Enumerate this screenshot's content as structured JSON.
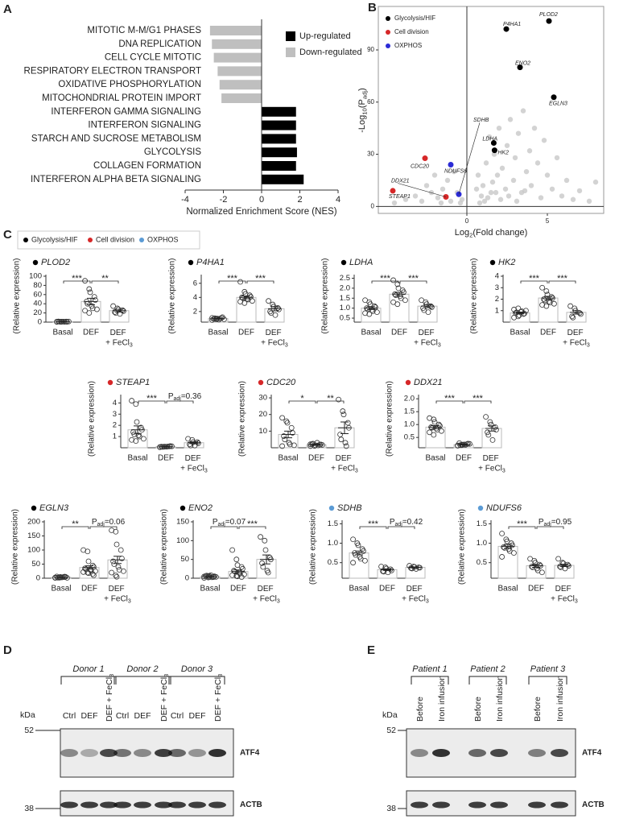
{
  "panel_labels": [
    "A",
    "B",
    "C",
    "D",
    "E"
  ],
  "chart_data": [
    {
      "type": "hbar",
      "xlabel": "Normalized Enrichment Score (NES)",
      "categories": [
        "MITOTIC M-M/G1 PHASES",
        "DNA REPLICATION",
        "CELL CYCLE MITOTIC",
        "RESPIRATORY ELECTRON TRANSPORT",
        "OXIDATIVE PHOSPHORYLATION",
        "MITOCHONDRIAL PROTEIN IMPORT",
        "INTERFERON GAMMA SIGNALING",
        "INTERFERON SIGNALING",
        "STARCH AND SUCROSE METABOLISM",
        "GLYCOLYSIS",
        "COLLAGEN FORMATION",
        "INTERFERON ALPHA BETA SIGNALING"
      ],
      "label_colors": [
        "#d62728",
        "#222222",
        "#222222",
        "#d62728",
        "#d62728",
        "#222222",
        "#d62728",
        "#222222",
        "#222222",
        "#d62728",
        "#222222",
        "#222222"
      ],
      "series": [
        {
          "name": "Up-regulated",
          "color": "#000000",
          "values": [
            null,
            null,
            null,
            null,
            null,
            null,
            1.8,
            1.8,
            1.8,
            1.85,
            1.8,
            2.2
          ]
        },
        {
          "name": "Down-regulated",
          "color": "#bfbfbf",
          "values": [
            -2.7,
            -2.6,
            -2.5,
            -2.3,
            -2.2,
            -2.1,
            null,
            null,
            null,
            null,
            null,
            null
          ]
        }
      ],
      "xlim": [
        -4,
        4
      ],
      "xticks": [
        -4,
        -2,
        0,
        2,
        4
      ]
    },
    {
      "type": "scatter",
      "xlabel": [
        "Log",
        "2",
        "(Fold change)"
      ],
      "ylabel": [
        "-Log",
        "10",
        "(P",
        "adj",
        ")"
      ],
      "xlim": [
        -5.5,
        8.5
      ],
      "xticks": [
        0,
        5
      ],
      "ylim": [
        -4,
        115
      ],
      "yticks": [
        0,
        30,
        60,
        90
      ],
      "series": [
        {
          "color": "#c8c8c8",
          "x": [
            -4.5,
            -3.8,
            -3.2,
            -2.8,
            -2.5,
            -2.2,
            -2.0,
            -1.8,
            -1.5,
            -1.2,
            -1.0,
            -0.8,
            -0.6,
            -0.4,
            1.0,
            1.2,
            1.4,
            1.5,
            1.7,
            1.9,
            2.0,
            2.2,
            2.4,
            2.5,
            2.7,
            2.9,
            3.0,
            3.2,
            3.4,
            3.5,
            3.7,
            3.9,
            4.0,
            4.2,
            4.4,
            4.6,
            4.8,
            5.0,
            5.3,
            5.6,
            5.9,
            6.2,
            6.6,
            7.0,
            7.6,
            8.0,
            1.1,
            1.3,
            0.9,
            2.1,
            0.6,
            0.8,
            -0.3,
            -1.6,
            1.6,
            2.6,
            3.1,
            3.6,
            0.7,
            1.8
          ],
          "values": [
            2,
            4,
            6,
            3,
            12,
            8,
            18,
            5,
            10,
            15,
            3,
            20,
            8,
            2,
            12,
            25,
            40,
            8,
            30,
            18,
            45,
            22,
            10,
            35,
            50,
            15,
            28,
            42,
            8,
            55,
            20,
            32,
            12,
            45,
            25,
            5,
            38,
            18,
            10,
            28,
            6,
            15,
            4,
            9,
            3,
            14,
            3,
            5,
            6,
            4,
            10,
            2,
            4,
            2,
            14,
            6,
            3,
            9,
            18,
            8
          ]
        },
        {
          "name": "Glycolysis/HIF",
          "color": "#000000",
          "x": [
            2.45,
            5.1,
            3.3,
            5.4,
            1.67,
            1.72
          ],
          "values": [
            102,
            106.6,
            80,
            62.8,
            36.5,
            32.3
          ],
          "labels": [
            "P4HA1",
            "PLOD2",
            "ENO2",
            "EGLN3",
            "LDHA",
            "HK2"
          ]
        },
        {
          "name": "Cell division",
          "color": "#d62728",
          "x": [
            -1.3,
            -2.6,
            -4.6
          ],
          "values": [
            5.5,
            27.7,
            9
          ],
          "labels": [
            "DDX21",
            "CDC20",
            "STEAP1"
          ]
        },
        {
          "name": "OXPHOS",
          "color": "#2b2bd6",
          "x": [
            -0.5,
            -1.0
          ],
          "values": [
            7,
            24
          ],
          "labels": [
            "SDHB",
            "NDUFS6"
          ]
        }
      ]
    },
    {
      "type": "dot",
      "title": "PLOD2",
      "marker_color": "#000000",
      "categories": [
        "Basal",
        "DEF",
        "DEF + FeCl3"
      ],
      "ylabel": "(Relative expression)",
      "ylim": [
        0,
        100
      ],
      "yticks": [
        0,
        20,
        40,
        60,
        80,
        100
      ],
      "values": [
        1,
        45,
        25
      ],
      "errors": [
        0.3,
        7,
        3
      ],
      "points": [
        [
          0.5,
          0.8,
          1,
          1.2,
          0.6,
          1.5,
          0.9,
          1.1,
          0.7,
          1.3,
          1,
          0.8
        ],
        [
          90,
          72,
          65,
          55,
          48,
          45,
          40,
          35,
          30,
          28,
          25,
          20
        ],
        [
          35,
          30,
          28,
          26,
          24,
          22,
          20,
          18
        ]
      ],
      "significance": [
        "***",
        "**"
      ]
    },
    {
      "type": "dot",
      "title": "P4HA1",
      "marker_color": "#000000",
      "categories": [
        "Basal",
        "DEF",
        "DEF + FeCl3"
      ],
      "ylabel": "(Relative expression)",
      "ylim": [
        0.5,
        7
      ],
      "yticks": [
        2,
        4,
        6
      ],
      "values": [
        1,
        4,
        2.4
      ],
      "errors": [
        0.05,
        0.2,
        0.3
      ],
      "points": [
        [
          0.8,
          0.9,
          1,
          1.1,
          1.2,
          0.95,
          1.05,
          0.85,
          1,
          0.9,
          1.1,
          1
        ],
        [
          6.2,
          4.8,
          4.5,
          4.3,
          4.1,
          4,
          3.9,
          3.8,
          3.7,
          3.5,
          3.4,
          3.2
        ],
        [
          3.5,
          3,
          2.7,
          2.5,
          2.3,
          2,
          1.8,
          1.5
        ]
      ],
      "significance": [
        "***",
        "***"
      ]
    },
    {
      "type": "dot",
      "title": "LDHA",
      "marker_color": "#000000",
      "categories": [
        "Basal",
        "DEF",
        "DEF + FeCl3"
      ],
      "ylabel": "(Relative expression)",
      "ylim": [
        0.3,
        2.6
      ],
      "yticks": [
        0.5,
        {
          "value": 1,
          "label": "1.0"
        },
        1.5,
        {
          "value": 2,
          "label": "2.0"
        },
        2.5
      ],
      "values": [
        1,
        1.7,
        1.1
      ],
      "errors": [
        0.07,
        0.1,
        0.08
      ],
      "points": [
        [
          1.4,
          1.3,
          1.2,
          1.1,
          1.05,
          1,
          0.95,
          0.9,
          0.85,
          0.8,
          0.75,
          0.7
        ],
        [
          2.4,
          2.2,
          2,
          1.9,
          1.8,
          1.7,
          1.65,
          1.6,
          1.5,
          1.4,
          1.3,
          1.2
        ],
        [
          1.4,
          1.3,
          1.2,
          1.1,
          1.05,
          1,
          0.9,
          0.8
        ]
      ],
      "significance": [
        "***",
        "***"
      ]
    },
    {
      "type": "dot",
      "title": "HK2",
      "marker_color": "#000000",
      "categories": [
        "Basal",
        "DEF",
        "DEF + FeCl3"
      ],
      "ylabel": "(Relative expression)",
      "ylim": [
        0,
        4
      ],
      "yticks": [
        1,
        2,
        3,
        4
      ],
      "values": [
        0.8,
        2.1,
        0.85
      ],
      "errors": [
        0.08,
        0.15,
        0.15
      ],
      "points": [
        [
          0.4,
          0.5,
          0.6,
          0.7,
          0.75,
          0.8,
          0.85,
          0.9,
          0.95,
          1,
          1.1,
          1.2
        ],
        [
          3,
          2.7,
          2.4,
          2.2,
          2.1,
          2,
          1.9,
          1.8,
          1.7,
          1.6,
          1.5,
          1.4
        ],
        [
          1.4,
          1.2,
          1,
          0.8,
          0.7,
          0.5,
          0.4
        ]
      ],
      "significance": [
        "***",
        "***"
      ]
    },
    {
      "type": "dot",
      "title": "STEAP1",
      "marker_color": "#d62728",
      "categories": [
        "Basal",
        "DEF",
        "DEF + FeCl3"
      ],
      "ylabel": "(Relative expression)",
      "ylim": [
        0,
        4.6
      ],
      "yticks": [
        1,
        2,
        3,
        4
      ],
      "values": [
        1.6,
        0.1,
        0.45
      ],
      "errors": [
        0.35,
        0.02,
        0.08
      ],
      "points": [
        [
          4.2,
          3.9,
          2.3,
          1.8,
          1.6,
          1.4,
          1.2,
          1.1,
          1,
          0.8,
          0.7,
          0.6
        ],
        [
          0.05,
          0.08,
          0.1,
          0.12,
          0.15,
          0.1,
          0.07,
          0.09,
          0.11,
          0.13,
          0.06,
          0.1
        ],
        [
          0.8,
          0.7,
          0.5,
          0.5,
          0.4,
          0.3,
          0.2,
          0.2
        ]
      ],
      "significance": [
        "***",
        [
          "P",
          "adj",
          "=0.36"
        ]
      ]
    },
    {
      "type": "dot",
      "title": "CDC20",
      "marker_color": "#d62728",
      "categories": [
        "Basal",
        "DEF",
        "DEF + FeCl3"
      ],
      "ylabel": "(Relative expression)",
      "ylim": [
        0,
        31
      ],
      "yticks": [
        10,
        20,
        30
      ],
      "values": [
        8,
        1.8,
        12
      ],
      "errors": [
        2,
        0.3,
        3.5
      ],
      "points": [
        [
          18,
          16,
          15,
          12,
          9,
          7,
          5,
          3,
          2,
          1.5,
          1
        ],
        [
          1,
          1.2,
          1.5,
          1.8,
          2,
          2.2,
          2.5,
          3,
          1.4,
          1.7,
          2.1,
          1.1
        ],
        [
          29,
          22,
          20,
          15,
          12,
          8,
          5,
          3,
          1
        ]
      ],
      "significance": [
        "*",
        "**"
      ]
    },
    {
      "type": "dot",
      "title": "DDX21",
      "marker_color": "#d62728",
      "categories": [
        "Basal",
        "DEF",
        "DEF + FeCl3"
      ],
      "ylabel": "(Relative expression)",
      "ylim": [
        0.1,
        2.1
      ],
      "yticks": [
        0.5,
        {
          "value": 1,
          "label": "1.0"
        },
        1.5,
        {
          "value": 2,
          "label": "2.0"
        }
      ],
      "values": [
        0.9,
        0.22,
        0.85
      ],
      "errors": [
        0.06,
        0.02,
        0.1
      ],
      "points": [
        [
          1.25,
          1.2,
          1.1,
          1,
          0.95,
          0.9,
          0.88,
          0.85,
          0.8,
          0.75,
          0.7,
          0.6
        ],
        [
          0.18,
          0.2,
          0.22,
          0.24,
          0.26,
          0.28,
          0.2,
          0.23,
          0.21,
          0.25,
          0.19,
          0.22
        ],
        [
          1.3,
          1.1,
          1,
          0.9,
          0.8,
          0.7,
          0.6,
          0.4
        ]
      ],
      "significance": [
        "***",
        "***"
      ]
    },
    {
      "type": "dot",
      "title": "EGLN3",
      "marker_color": "#000000",
      "categories": [
        "Basal",
        "DEF",
        "DEF + FeCl3"
      ],
      "ylabel": "(Relative expression)",
      "ylim": [
        0,
        200
      ],
      "yticks": [
        0,
        50,
        100,
        150,
        200
      ],
      "values": [
        3,
        38,
        65
      ],
      "errors": [
        0.5,
        6,
        13
      ],
      "points": [
        [
          1,
          2,
          3,
          4,
          5,
          6,
          2,
          3,
          4,
          1.5,
          2.5,
          3.5,
          4.5,
          5.5
        ],
        [
          100,
          95,
          60,
          45,
          40,
          35,
          32,
          30,
          28,
          25,
          22,
          20,
          18,
          15,
          10
        ],
        [
          170,
          165,
          120,
          100,
          70,
          60,
          50,
          40,
          30,
          25,
          20,
          10,
          5
        ]
      ],
      "significance": [
        "**",
        [
          "P",
          "adj",
          "=0.06"
        ]
      ]
    },
    {
      "type": "dot",
      "title": "ENO2",
      "marker_color": "#000000",
      "categories": [
        "Basal",
        "DEF",
        "DEF + FeCl3"
      ],
      "ylabel": "(Relative expression)",
      "ylim": [
        0,
        150
      ],
      "yticks": [
        0,
        50,
        100,
        150
      ],
      "values": [
        4,
        18,
        50
      ],
      "errors": [
        0.6,
        4,
        12
      ],
      "points": [
        [
          1,
          2,
          3,
          4,
          5,
          6,
          7,
          8,
          2.5,
          3.5,
          4.5,
          5.5,
          6.5,
          3
        ],
        [
          75,
          50,
          35,
          30,
          25,
          20,
          18,
          15,
          12,
          10,
          8,
          6,
          5,
          3
        ],
        [
          110,
          100,
          75,
          55,
          50,
          40,
          30,
          20,
          15
        ]
      ],
      "significance": [
        [
          "P",
          "adj",
          "=0.07"
        ],
        "***"
      ]
    },
    {
      "type": "dot",
      "title": "SDHB",
      "marker_color": "#5b9bd5",
      "categories": [
        "Basal",
        "DEF",
        "DEF + FeCl3"
      ],
      "ylabel": "(Relative expression)",
      "ylim": [
        0.1,
        1.55
      ],
      "yticks": [
        0.5,
        {
          "value": 1,
          "label": "1.0"
        },
        1.5
      ],
      "values": [
        0.75,
        0.32,
        0.38
      ],
      "errors": [
        0.05,
        0.02,
        0.01
      ],
      "points": [
        [
          1.1,
          1,
          0.95,
          0.85,
          0.8,
          0.75,
          0.7,
          0.65,
          0.6,
          0.55,
          0.5
        ],
        [
          0.4,
          0.38,
          0.35,
          0.33,
          0.3,
          0.28,
          0.27,
          0.25
        ],
        [
          0.42,
          0.4,
          0.39,
          0.38,
          0.37,
          0.36,
          0.35,
          0.34
        ]
      ],
      "significance": [
        "***",
        [
          "P",
          "adj",
          "=0.42"
        ]
      ]
    },
    {
      "type": "dot",
      "title": "NDUFS6",
      "marker_color": "#5b9bd5",
      "categories": [
        "Basal",
        "DEF",
        "DEF + FeCl3"
      ],
      "ylabel": "(Relative expression)",
      "ylim": [
        0.1,
        1.55
      ],
      "yticks": [
        0.5,
        {
          "value": 1,
          "label": "1.0"
        },
        1.5
      ],
      "values": [
        0.92,
        0.42,
        0.43
      ],
      "errors": [
        0.05,
        0.04,
        0.03
      ],
      "points": [
        [
          1.25,
          1.1,
          1.05,
          1,
          0.95,
          0.9,
          0.88,
          0.85,
          0.8,
          0.75,
          0.65
        ],
        [
          0.6,
          0.55,
          0.5,
          0.45,
          0.42,
          0.4,
          0.38,
          0.35,
          0.3,
          0.25
        ],
        [
          0.6,
          0.5,
          0.48,
          0.45,
          0.42,
          0.4,
          0.38,
          0.35
        ]
      ],
      "significance": [
        "***",
        [
          "P",
          "adj",
          "=0.95"
        ]
      ]
    }
  ],
  "c_legend": [
    {
      "name": "Glycolysis/HIF",
      "color": "#000000"
    },
    {
      "name": "Cell division",
      "color": "#d62728"
    },
    {
      "name": "OXPHOS",
      "color": "#5b9bd5"
    }
  ],
  "blots": [
    {
      "groups": [
        "Donor 1",
        "Donor 2",
        "Donor 3"
      ],
      "lanes": [
        "Ctrl",
        "DEF",
        "DEF + FeCl3",
        "Ctrl",
        "DEF",
        "DEF + FeCl3",
        "Ctrl",
        "DEF",
        "DEF + FeCl3"
      ],
      "kda": "kDa",
      "markers": [
        52,
        38
      ],
      "proteins": [
        "ATF4",
        "ACTB"
      ]
    },
    {
      "groups": [
        "Patient 1",
        "Patient 2",
        "Patient 3"
      ],
      "lanes": [
        "Before",
        "Iron infusion",
        "Before",
        "Iron infusion",
        "Before",
        "Iron infusion"
      ],
      "kda": "kDa",
      "markers": [
        52,
        38
      ],
      "proteins": [
        "ATF4",
        "ACTB"
      ]
    }
  ]
}
